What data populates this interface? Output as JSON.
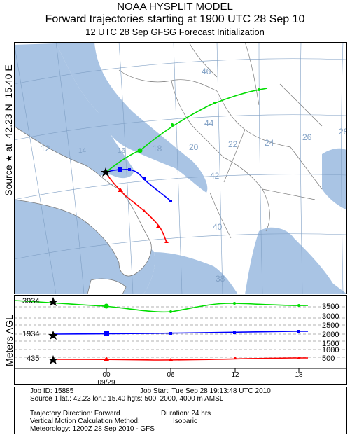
{
  "header": {
    "line1": "NOAA HYSPLIT MODEL",
    "line2": "Forward trajectories starting at 1900 UTC 28 Sep 10",
    "line3": "12 UTC 28 Sep    GFSG  Forecast Initialization"
  },
  "side_label": {
    "source": "Source",
    "star": "★",
    "at": "at",
    "lat": "42.23 N",
    "lon": "15.40 E"
  },
  "agl_label": "Meters AGL",
  "map": {
    "meridian_labels": [
      "12",
      "14",
      "16",
      "18",
      "20",
      "22",
      "24",
      "26",
      "28"
    ],
    "parallel_labels": [
      "46",
      "44",
      "42",
      "40",
      "38"
    ],
    "colors": {
      "sea": "#a9c4e4",
      "land": "#ffffff",
      "border": "#7a7a7a",
      "grid": "#7f9fc4"
    }
  },
  "trajectories": [
    {
      "name": "500 m",
      "color": "#ff0000",
      "marker": "triangle"
    },
    {
      "name": "2000 m",
      "color": "#0000ff",
      "marker": "square"
    },
    {
      "name": "4000 m",
      "color": "#00dd00",
      "marker": "circle"
    }
  ],
  "agl": {
    "left_levels": [
      "3934",
      "1934",
      "435"
    ],
    "right_levels": [
      "3500",
      "3000",
      "2500",
      "2000",
      "1500",
      "1000",
      "500"
    ],
    "time_ticks": [
      "00",
      "06",
      "12",
      "18"
    ],
    "date_label": "09/29"
  },
  "info": {
    "job_id": "Job ID:  15885",
    "job_start": "Job Start:  Tue Sep 28 19:13:48 UTC 2010",
    "source": "Source 1 lat.:  42.23   lon.:  15.40   hgts:  500, 2000, 4000 m AMSL",
    "direction": "Trajectory Direction:  Forward",
    "duration": "Duration:  24 hrs",
    "vertical_label": "Vertical Motion Calculation Method:",
    "vertical_value": "Isobaric",
    "meteorology": "Meteorology:  1200Z 28 Sep 2010 - GFS"
  }
}
